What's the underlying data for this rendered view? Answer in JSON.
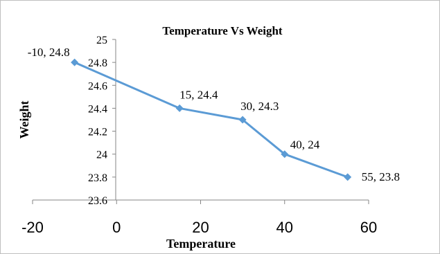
{
  "chart_data": {
    "type": "scatter",
    "title": "Temperature Vs Weight",
    "xlabel": "Temperature",
    "ylabel": "Weight",
    "xlim": [
      -20,
      60
    ],
    "ylim": [
      23.6,
      25
    ],
    "x_ticks": [
      -20,
      0,
      20,
      40,
      60
    ],
    "y_ticks": [
      23.6,
      23.8,
      24,
      24.2,
      24.4,
      24.6,
      24.8,
      25
    ],
    "line_style": "straight lines with diamond markers",
    "grid": false,
    "legend": "none",
    "series_color": "#5b9bd5",
    "series": [
      {
        "x": [
          -10,
          15,
          30,
          40,
          55
        ],
        "y": [
          24.8,
          24.4,
          24.3,
          24,
          23.8
        ],
        "data_labels": [
          "-10, 24.8",
          "15, 24.4",
          "30, 24.3",
          "40, 24",
          "55, 23.8"
        ]
      }
    ]
  }
}
